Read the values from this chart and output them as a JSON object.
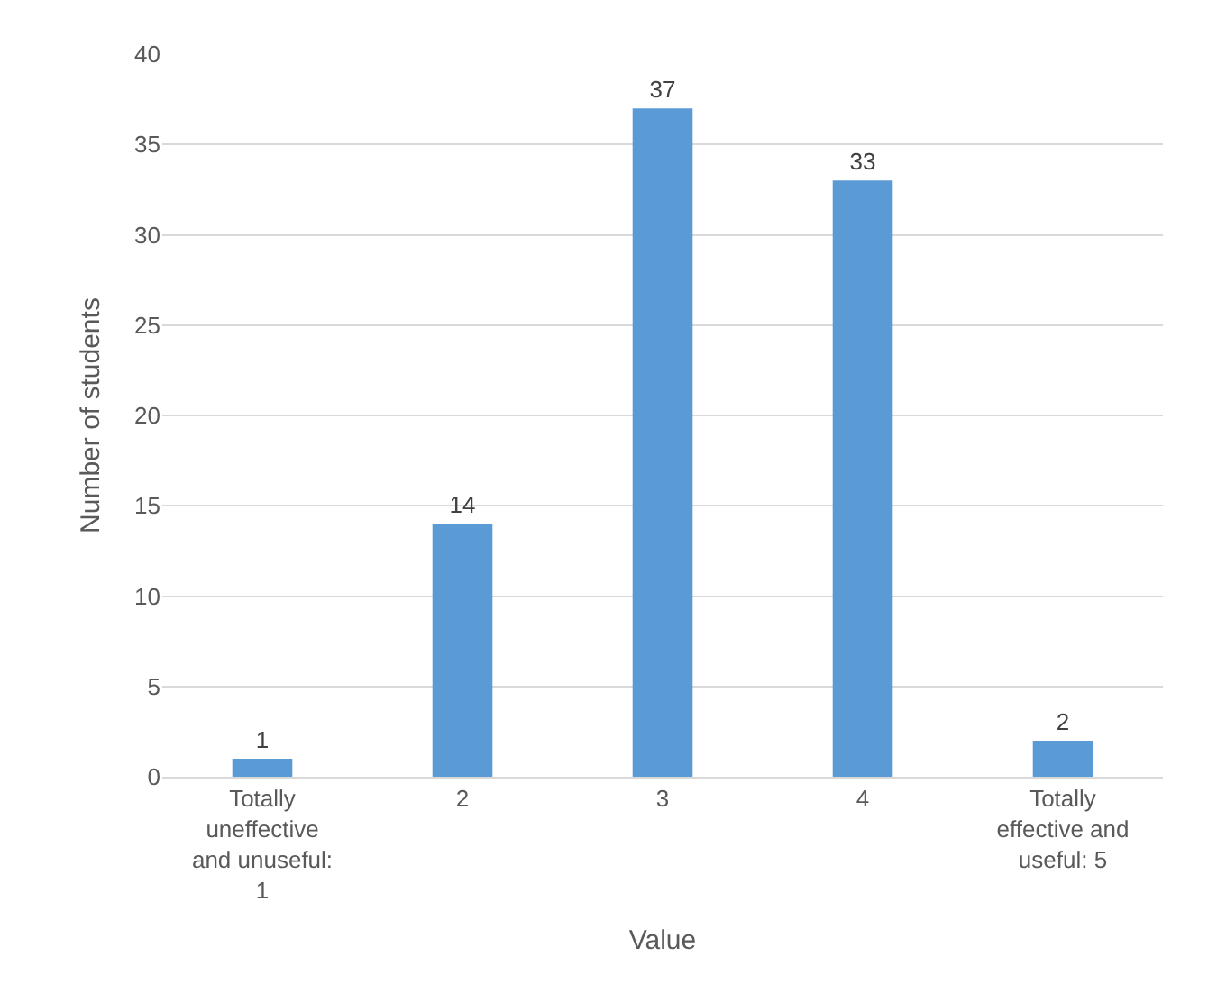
{
  "chart_data": {
    "type": "bar",
    "xlabel": "Value",
    "ylabel": "Number of students",
    "categories": [
      "Totally uneffective and unuseful: 1",
      "2",
      "3",
      "4",
      "Totally effective and useful: 5"
    ],
    "values": [
      1,
      14,
      37,
      33,
      2
    ],
    "color": "#5b9bd5",
    "ylim": [
      0,
      40
    ],
    "yticks": [
      0,
      5,
      10,
      15,
      20,
      25,
      30,
      35,
      40
    ],
    "grid": "y",
    "data_labels": true
  }
}
